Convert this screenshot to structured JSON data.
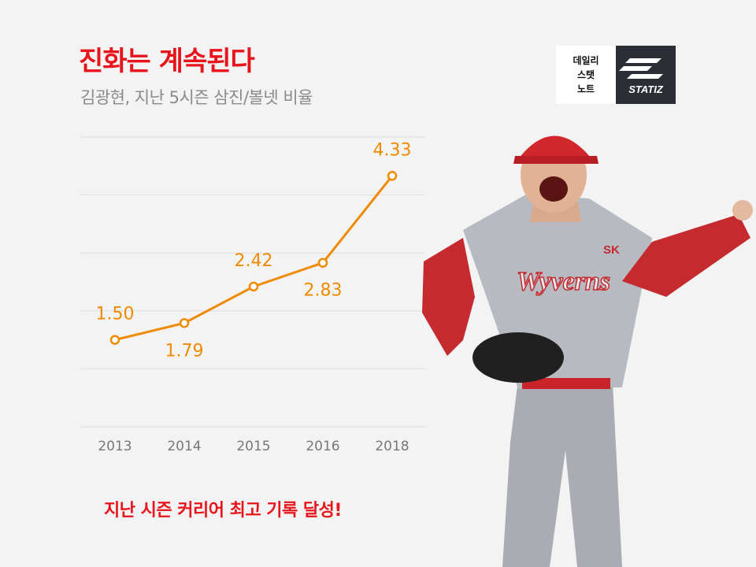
{
  "header": {
    "title": "진화는 계속된다",
    "subtitle": "김광현, 지난 5시즌 삼진/볼넷 비율"
  },
  "logo": {
    "daily_lines": [
      "데일리",
      "스탯",
      "노트"
    ],
    "brand": "STATIZ"
  },
  "footer": {
    "text": "지난 시즌 커리어 최고 기록 달성!"
  },
  "colors": {
    "title": "#e8141c",
    "line": "#f08a00",
    "grid": "#dddddd",
    "tick": "#777777"
  },
  "chart_data": {
    "type": "line",
    "categories": [
      "2013",
      "2014",
      "2015",
      "2016",
      "2018"
    ],
    "values": [
      1.5,
      1.79,
      2.42,
      2.83,
      4.33
    ],
    "labels": [
      "1.50",
      "1.79",
      "2.42",
      "2.83",
      "4.33"
    ],
    "ylim": [
      0,
      5
    ],
    "grid": true,
    "title": "",
    "xlabel": "",
    "ylabel": ""
  }
}
